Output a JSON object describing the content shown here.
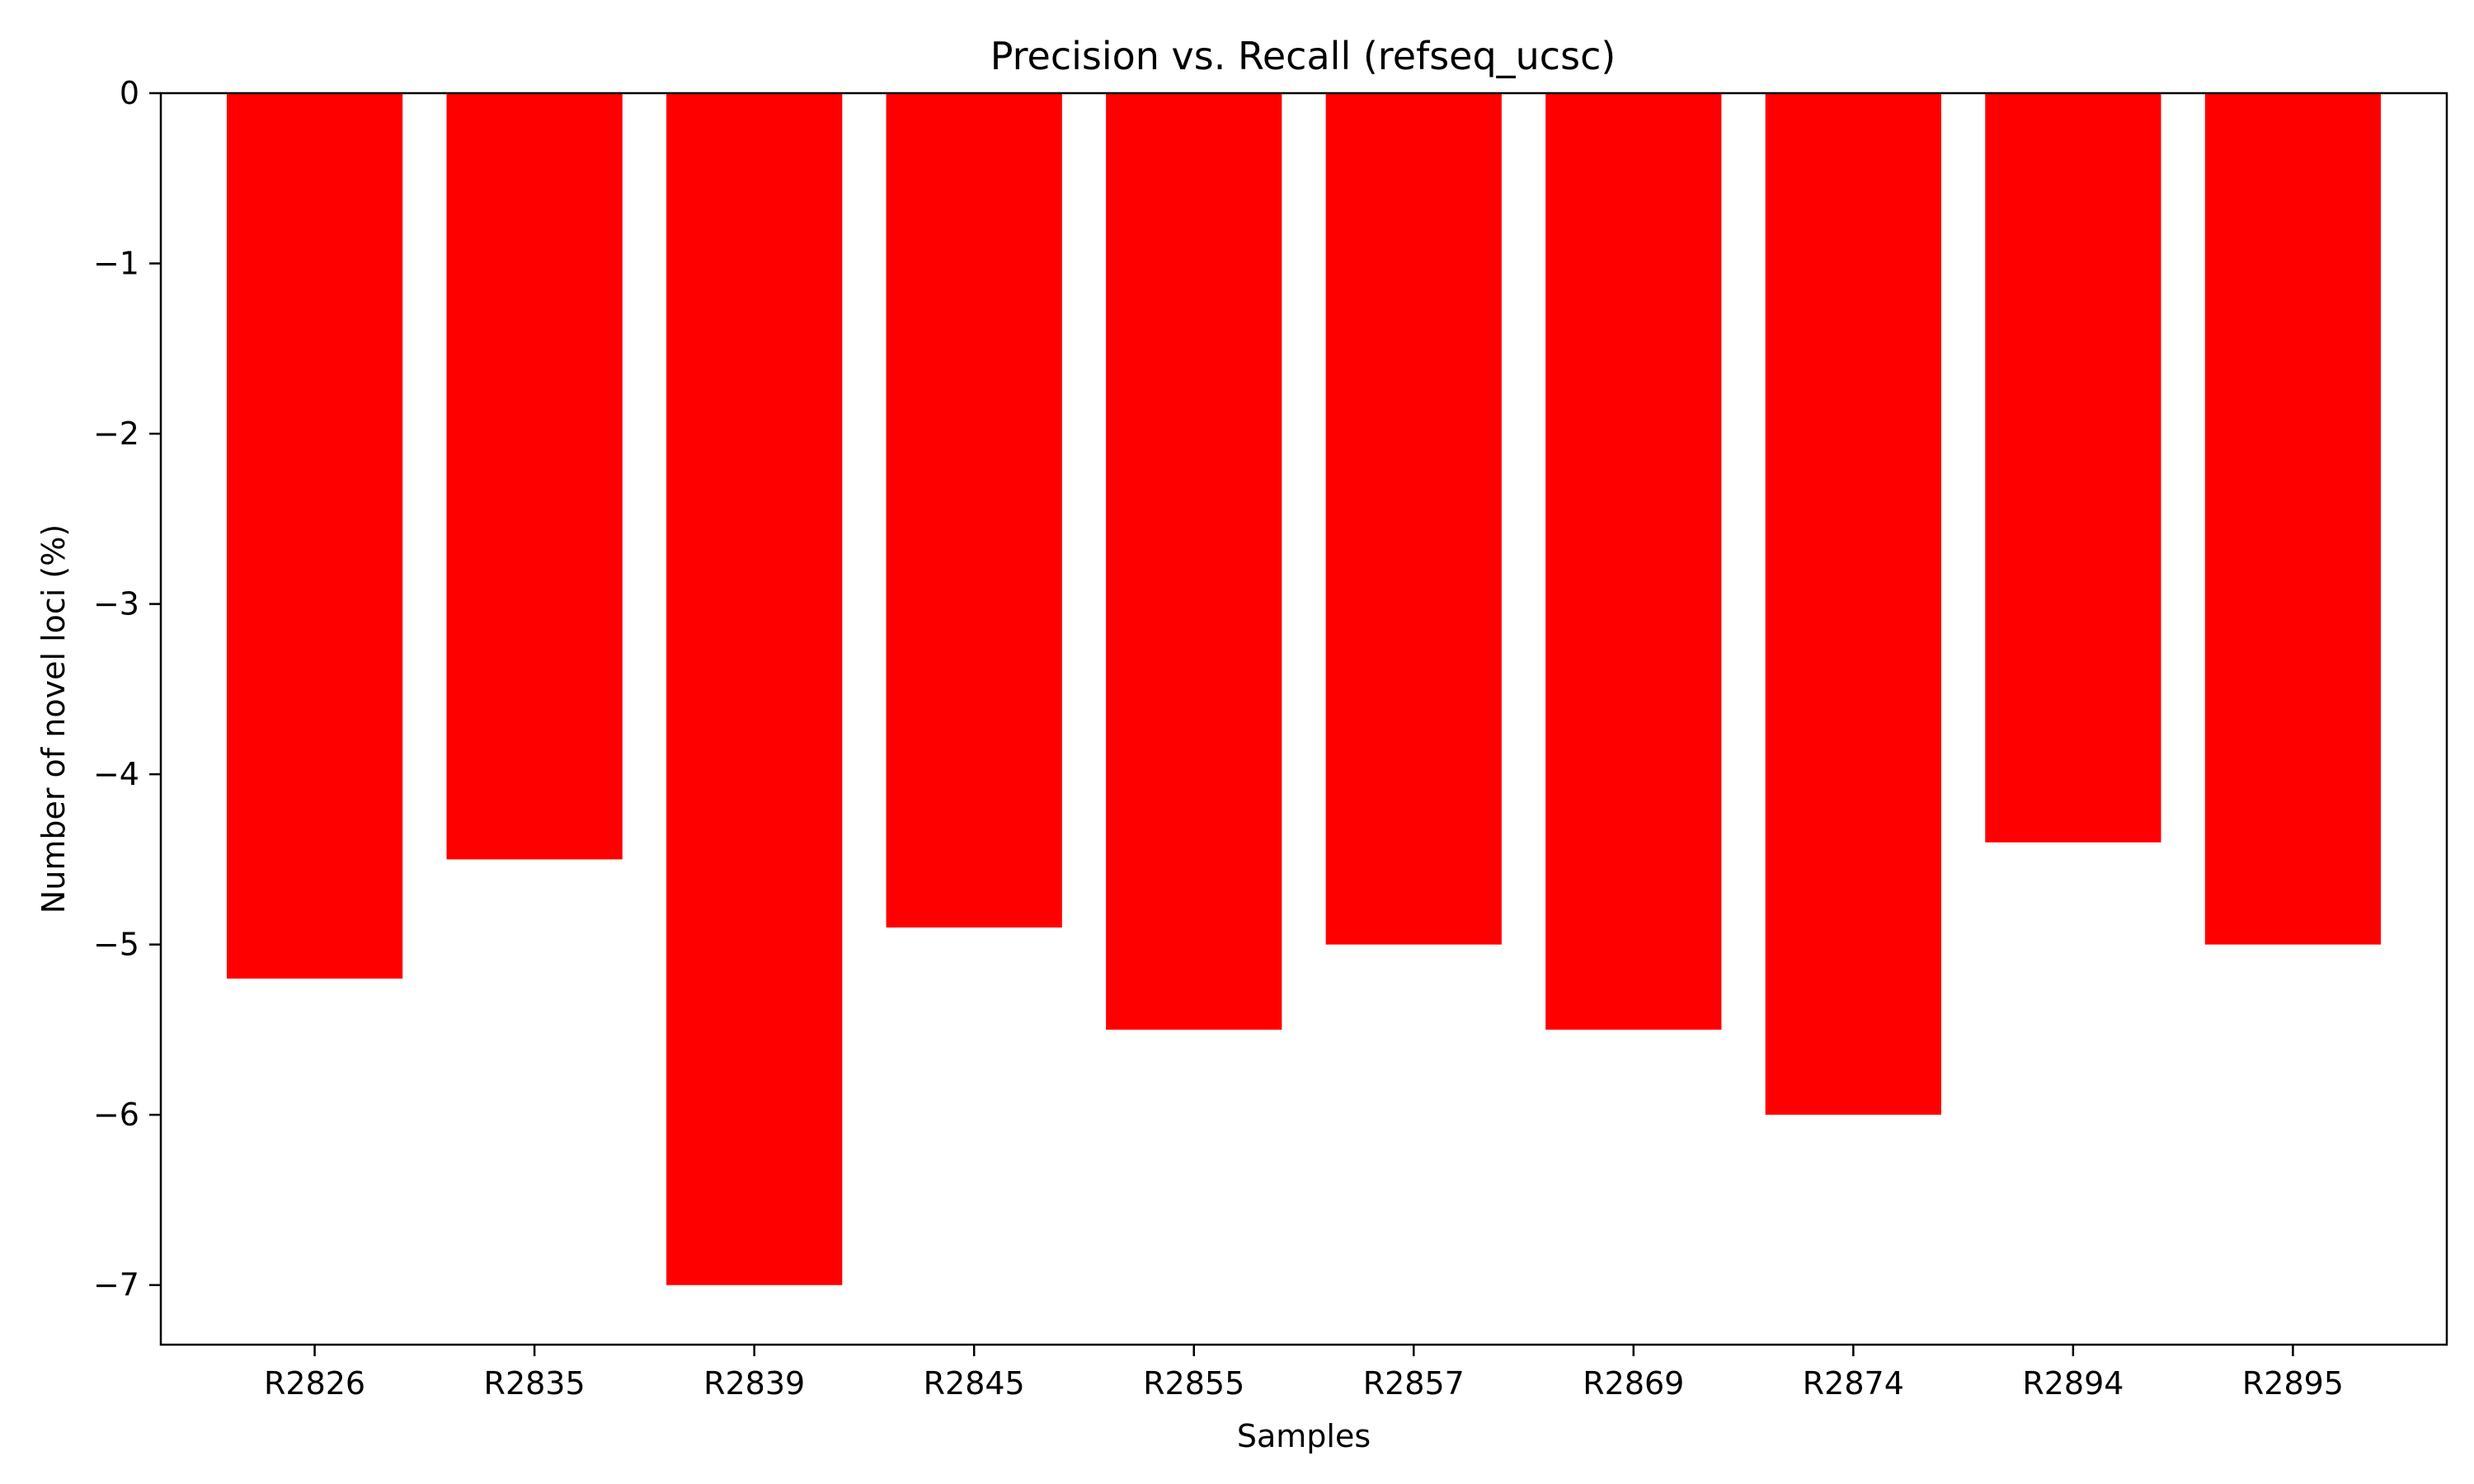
{
  "chart_data": {
    "type": "bar",
    "title": "Precision vs. Recall (refseq_ucsc)",
    "xlabel": "Samples",
    "ylabel": "Number of novel loci (%)",
    "categories": [
      "R2826",
      "R2835",
      "R2839",
      "R2845",
      "R2855",
      "R2857",
      "R2869",
      "R2874",
      "R2894",
      "R2895"
    ],
    "values": [
      -5.2,
      -4.5,
      -7.0,
      -4.9,
      -5.5,
      -5.0,
      -5.5,
      -6.0,
      -4.4,
      -5.0
    ],
    "ylim": [
      -7.35,
      0
    ],
    "yticks": [
      0,
      -1,
      -2,
      -3,
      -4,
      -5,
      -6,
      -7
    ],
    "ytick_labels": [
      "0",
      "−1",
      "−2",
      "−3",
      "−4",
      "−5",
      "−6",
      "−7"
    ],
    "bar_color": "#ff0000",
    "grid": false,
    "legend": false
  }
}
